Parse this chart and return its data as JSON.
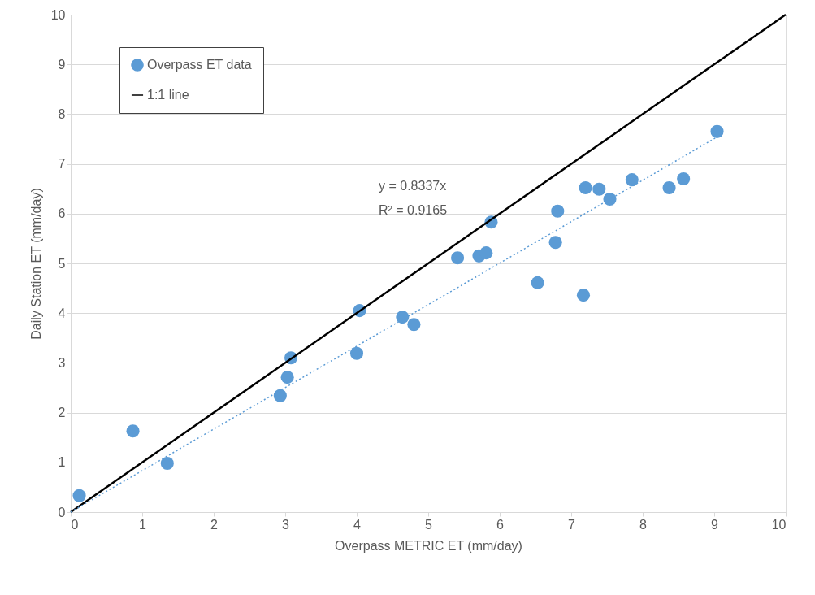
{
  "chart_data": {
    "type": "scatter",
    "xlabel": "Overpass METRIC ET (mm/day)",
    "ylabel": "Daily Station ET (mm/day)",
    "xlim": [
      0,
      10
    ],
    "ylim": [
      0,
      10
    ],
    "xticks": [
      0,
      1,
      2,
      3,
      4,
      5,
      6,
      7,
      8,
      9,
      10
    ],
    "yticks": [
      0,
      1,
      2,
      3,
      4,
      5,
      6,
      7,
      8,
      9,
      10
    ],
    "grid": "y",
    "legend": "top left",
    "series": [
      {
        "name": "Overpass ET data",
        "marker": "circle",
        "color": "#5b9bd5",
        "x": [
          0.12,
          0.87,
          1.35,
          2.93,
          3.03,
          3.08,
          4.0,
          4.04,
          4.64,
          4.8,
          5.41,
          5.71,
          5.81,
          5.88,
          6.53,
          6.78,
          6.81,
          7.17,
          7.2,
          7.39,
          7.54,
          7.85,
          8.37,
          8.57,
          9.04
        ],
        "values": [
          0.33,
          1.63,
          0.98,
          2.34,
          2.71,
          3.1,
          3.19,
          4.05,
          3.92,
          3.77,
          5.11,
          5.15,
          5.21,
          5.83,
          4.61,
          5.42,
          6.05,
          4.36,
          6.52,
          6.49,
          6.29,
          6.68,
          6.52,
          6.7,
          7.65
        ]
      },
      {
        "name": "1:1 line",
        "type": "line",
        "marker": "none",
        "color": "#000000",
        "line_style": "solid",
        "x": [
          0,
          10
        ],
        "values": [
          0,
          10
        ]
      },
      {
        "type": "line",
        "marker": "none",
        "color": "#5b9bd5",
        "line_style": "dotted",
        "x": [
          0,
          9.04
        ],
        "values": [
          0,
          7.54
        ]
      }
    ],
    "annotations": [
      "y = 0.8337x",
      "R² = 0.9165"
    ]
  }
}
